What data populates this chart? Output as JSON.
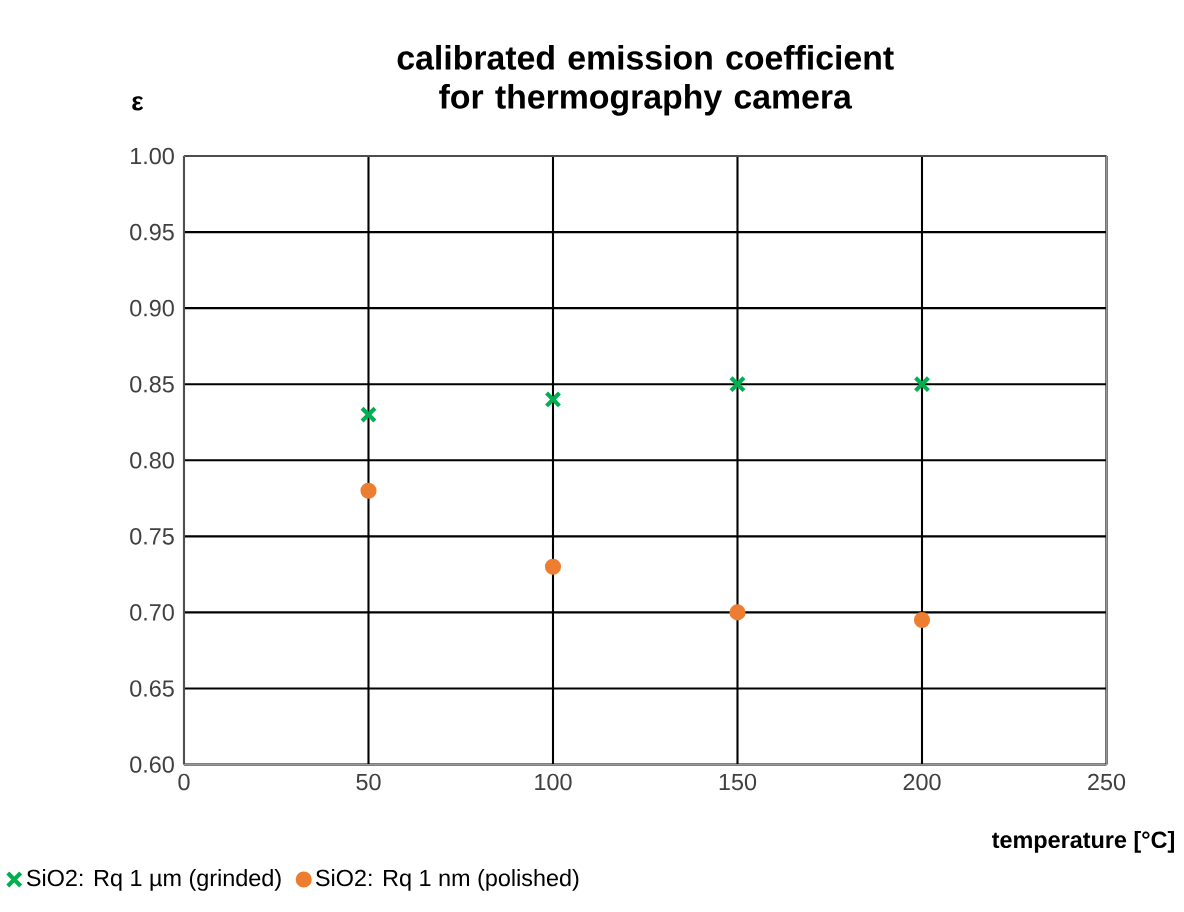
{
  "chart_data": {
    "type": "scatter",
    "title": "calibrated emission coefficient for thermography camera",
    "xlabel": "temperature [°C]",
    "ylabel": "ε",
    "x": [
      50,
      100,
      150,
      200
    ],
    "series": [
      {
        "name": "SiO2: Rq 1 µm (grinded)",
        "color": "#00b050",
        "marker": "cross",
        "values": [
          0.83,
          0.84,
          0.85,
          0.85
        ]
      },
      {
        "name": "SiO2: Rq 1 nm (polished)",
        "color": "#ed7d31",
        "marker": "circle",
        "values": [
          0.78,
          0.73,
          0.7,
          0.695
        ]
      }
    ],
    "xlim": [
      0,
      250
    ],
    "xticks": [
      0,
      50,
      100,
      150,
      200,
      250
    ],
    "ylim": [
      0.6,
      1.0
    ],
    "yticks": [
      {
        "value": 0.6,
        "label": "0.60"
      },
      {
        "value": 0.65,
        "label": "0.65"
      },
      {
        "value": 0.7,
        "label": "0.70"
      },
      {
        "value": 0.75,
        "label": "0.75"
      },
      {
        "value": 0.8,
        "label": "0.80"
      },
      {
        "value": 0.85,
        "label": "0.85"
      },
      {
        "value": 0.9,
        "label": "0.90"
      },
      {
        "value": 0.95,
        "label": "0.95"
      },
      {
        "value": 1.0,
        "label": "1.00"
      }
    ],
    "grid": true,
    "legend": "bottom left"
  }
}
